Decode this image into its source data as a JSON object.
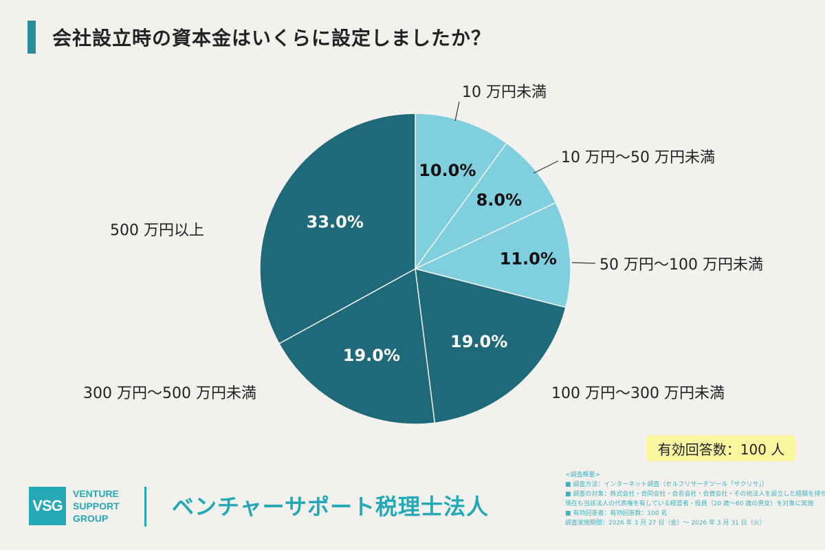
{
  "title": "会社設立時の資本金はいくらに設定しましたか？",
  "respondents": "有効回答数：100 人",
  "logo": {
    "mark": "VSG",
    "line1": "VENTURE",
    "line2": "SUPPORT",
    "line3": "GROUP"
  },
  "company": "ベンチャーサポート税理士法人",
  "survey": {
    "heading": "<調査概要>",
    "line1": "■ 調査方法：インターネット調査（セルフリサーチツール「サクリサ」）",
    "line2": "■ 調査の対象：株式会社・合同会社・合名会社・合資会社・その他法人を設立した経験を持ち、",
    "line3": "現在も当該法人の代表権を有している経営者・役員（20 歳〜60 歳の男女）を対象に実施",
    "line4": "■ 有効回答者：有効回答数：100 名",
    "line5": "調査実施期間：2026 年 3 月 27 日（金）〜 2026 年 3 月 31 日（火）"
  },
  "chart_data": {
    "type": "pie",
    "start": "12 o'clock, clockwise",
    "slices": [
      {
        "label": "10 万円未満",
        "value": 10.0,
        "display": "10.0%",
        "color": "#80cfdf"
      },
      {
        "label": "10 万円〜50 万円未満",
        "value": 8.0,
        "display": "8.0%",
        "color": "#80cfdf"
      },
      {
        "label": "50 万円〜100 万円未満",
        "value": 11.0,
        "display": "11.0%",
        "color": "#80cfdf"
      },
      {
        "label": "100 万円〜300 万円未満",
        "value": 19.0,
        "display": "19.0%",
        "color": "#1e6a7a"
      },
      {
        "label": "300 万円〜500 万円未満",
        "value": 19.0,
        "display": "19.0%",
        "color": "#1e6a7a"
      },
      {
        "label": "500 万円以上",
        "value": 33.0,
        "display": "33.0%",
        "color": "#1e6a7a"
      }
    ]
  }
}
